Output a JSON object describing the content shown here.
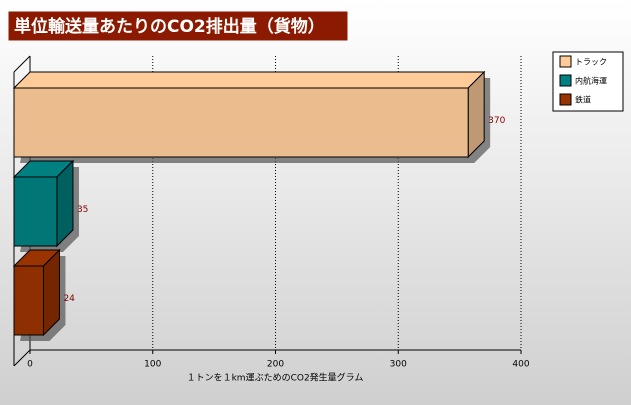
{
  "chart_data": {
    "type": "bar",
    "orientation": "horizontal",
    "title": "単位輸送量あたりのCO2排出量（貨物）",
    "x_label": "１トンを１km運ぶためのCO2発生量グラム",
    "series": [
      {
        "name": "トラック",
        "color": "#ffcc99",
        "values": [
          370
        ]
      },
      {
        "name": "内航海運",
        "color": "#008080",
        "values": [
          35
        ]
      },
      {
        "name": "鉄道",
        "color": "#993300",
        "values": [
          24
        ]
      }
    ],
    "xlim": [
      0,
      400
    ],
    "xticks": [
      0,
      100,
      200,
      300,
      400
    ],
    "grid": true,
    "legend": "right"
  }
}
